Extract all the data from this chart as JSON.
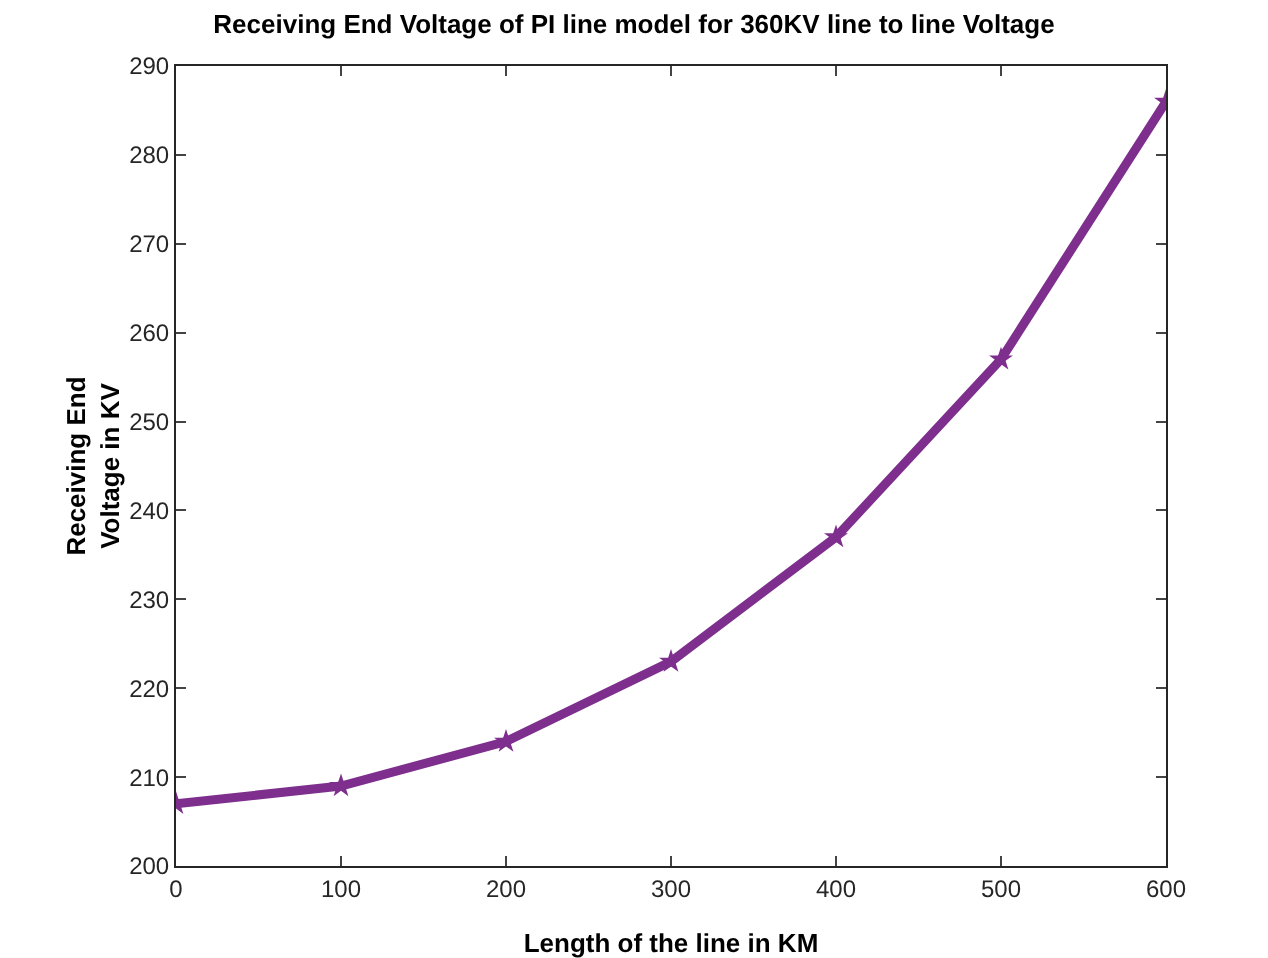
{
  "chart_data": {
    "type": "line",
    "title": "Receiving End Voltage of PI line model for 360KV line to line Voltage",
    "xlabel": "Length of the line in KM",
    "ylabel": "Receiving End\nVoltage in KV",
    "x": [
      0,
      100,
      200,
      300,
      400,
      500,
      600
    ],
    "series": [
      {
        "color": "#7e2f8e",
        "values": [
          207,
          209,
          214,
          223,
          237,
          257,
          286
        ]
      }
    ],
    "xlim": [
      0,
      600
    ],
    "xticks": [
      0,
      100,
      200,
      300,
      400,
      500,
      600
    ],
    "ylim": [
      200,
      290
    ],
    "yticks": [
      200,
      210,
      220,
      230,
      240,
      250,
      260,
      270,
      280,
      290
    ],
    "grid": false,
    "marker": "star",
    "line_style": "solid"
  }
}
